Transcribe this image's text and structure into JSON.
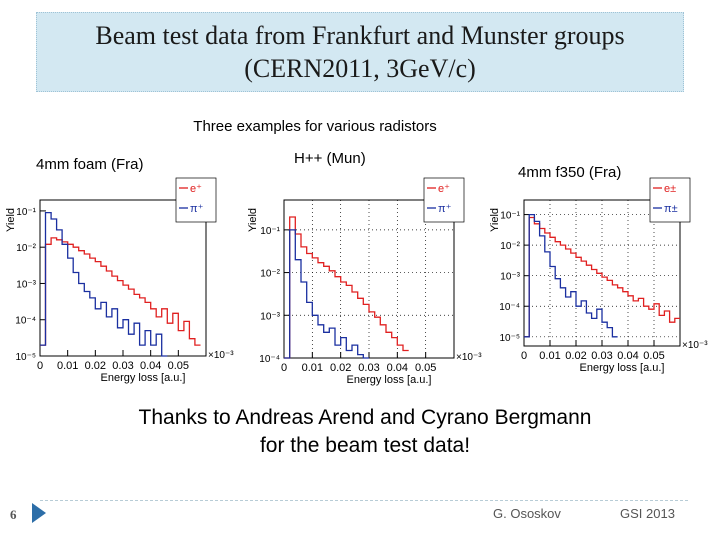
{
  "slide": {
    "title_line1": "Beam test data from Frankfurt and Munster groups",
    "title_line2": "(CERN2011, 3GeV/c)",
    "subtitle": "Three examples for various radistors",
    "thanks_line1": "Thanks to Andreas Arend and Cyrano Bergmann",
    "thanks_line2": "for the beam test data!",
    "slide_number": "6",
    "footer_author": "G. Ososkov",
    "footer_conference": "GSI 2013",
    "accent_color": "#d3e8f2"
  },
  "chart_data": [
    {
      "type": "line",
      "panel_label": "4mm  foam (Fra)",
      "xlabel": "Energy loss [a.u.]",
      "ylabel": "Yield",
      "x_scale_label": "×10⁻³",
      "xlim": [
        0,
        0.06
      ],
      "ylim": [
        1e-05,
        0.2
      ],
      "y_scale": "log",
      "x_ticks": [
        "0",
        "0.01",
        "0.02",
        "0.03",
        "0.04",
        "0.05"
      ],
      "y_ticks": [
        "10⁻¹",
        "10⁻²",
        "10⁻³",
        "10⁻⁴",
        "10⁻⁵"
      ],
      "legend_position": "top-right",
      "grid": false,
      "series": [
        {
          "name": "e⁺",
          "color": "#e02020",
          "x": [
            0,
            0.002,
            0.004,
            0.006,
            0.008,
            0.01,
            0.012,
            0.014,
            0.016,
            0.018,
            0.02,
            0.022,
            0.024,
            0.026,
            0.028,
            0.03,
            0.032,
            0.034,
            0.036,
            0.038,
            0.04,
            0.042,
            0.044,
            0.046,
            0.048,
            0.05,
            0.052,
            0.054,
            0.056
          ],
          "y": [
            2e-05,
            0.012,
            0.018,
            0.016,
            0.014,
            0.012,
            0.01,
            0.008,
            0.0065,
            0.005,
            0.004,
            0.003,
            0.0022,
            0.0016,
            0.0012,
            0.0009,
            0.0007,
            0.0005,
            0.0004,
            0.0003,
            0.0002,
            0.00012,
            0.0002,
            8e-05,
            0.00015,
            5e-05,
            9e-05,
            3e-05,
            2e-05
          ]
        },
        {
          "name": "π⁺",
          "color": "#1a2fa0",
          "x": [
            0,
            0.002,
            0.004,
            0.006,
            0.008,
            0.01,
            0.012,
            0.014,
            0.016,
            0.018,
            0.02,
            0.022,
            0.024,
            0.026,
            0.028,
            0.03,
            0.032,
            0.034,
            0.036,
            0.038,
            0.04,
            0.042,
            0.044
          ],
          "y": [
            2e-05,
            0.09,
            0.06,
            0.03,
            0.012,
            0.005,
            0.002,
            0.001,
            0.0006,
            0.0004,
            0.0002,
            0.0003,
            0.00012,
            0.0002,
            6e-05,
            0.0001,
            4e-05,
            8e-05,
            2e-05,
            5e-05,
            2e-05,
            4e-05,
            1e-05
          ]
        }
      ]
    },
    {
      "type": "line",
      "panel_label": "H++ (Mun)",
      "xlabel": "Energy loss [a.u.]",
      "ylabel": "Yield",
      "x_scale_label": "×10⁻³",
      "xlim": [
        0,
        0.06
      ],
      "ylim": [
        0.0001,
        0.5
      ],
      "y_scale": "log",
      "x_ticks": [
        "0",
        "0.01",
        "0.02",
        "0.03",
        "0.04",
        "0.05"
      ],
      "y_ticks": [
        "10⁻¹",
        "10⁻²",
        "10⁻³",
        "10⁻⁴"
      ],
      "legend_position": "top-right",
      "grid": true,
      "series": [
        {
          "name": "e⁺",
          "color": "#e02020",
          "x": [
            0,
            0.002,
            0.004,
            0.006,
            0.008,
            0.01,
            0.012,
            0.014,
            0.016,
            0.018,
            0.02,
            0.022,
            0.024,
            0.026,
            0.028,
            0.03,
            0.032,
            0.034,
            0.036,
            0.038,
            0.04,
            0.042
          ],
          "y": [
            0.0001,
            0.2,
            0.08,
            0.04,
            0.028,
            0.022,
            0.017,
            0.014,
            0.011,
            0.008,
            0.006,
            0.005,
            0.0035,
            0.0025,
            0.0018,
            0.0012,
            0.0009,
            0.0006,
            0.0004,
            0.0003,
            0.0002,
            0.00015
          ]
        },
        {
          "name": "π⁺",
          "color": "#1a2fa0",
          "x": [
            0,
            0.002,
            0.004,
            0.006,
            0.008,
            0.01,
            0.012,
            0.014,
            0.016,
            0.018,
            0.02,
            0.022,
            0.024,
            0.026,
            0.028
          ],
          "y": [
            0.0001,
            0.1,
            0.02,
            0.006,
            0.002,
            0.001,
            0.0006,
            0.0004,
            0.0005,
            0.0002,
            0.0003,
            0.00015,
            0.0002,
            0.00012,
            0.0001
          ]
        }
      ]
    },
    {
      "type": "line",
      "panel_label": "4mm  f350 (Fra)",
      "xlabel": "Energy loss [a.u.]",
      "ylabel": "Yield",
      "x_scale_label": "×10⁻³",
      "xlim": [
        0,
        0.06
      ],
      "ylim": [
        5e-06,
        0.3
      ],
      "y_scale": "log",
      "x_ticks": [
        "0",
        "0.01",
        "0.02",
        "0.03",
        "0.04",
        "0.05"
      ],
      "y_ticks": [
        "10⁻¹",
        "10⁻²",
        "10⁻³",
        "10⁻⁴",
        "10⁻⁵"
      ],
      "legend_position": "top-right",
      "grid": true,
      "series": [
        {
          "name": "e±",
          "color": "#e02020",
          "x": [
            0,
            0.002,
            0.004,
            0.006,
            0.008,
            0.01,
            0.012,
            0.014,
            0.016,
            0.018,
            0.02,
            0.022,
            0.024,
            0.026,
            0.028,
            0.03,
            0.032,
            0.034,
            0.036,
            0.038,
            0.04,
            0.042,
            0.044,
            0.046,
            0.048,
            0.05,
            0.052,
            0.054,
            0.056,
            0.058
          ],
          "y": [
            1e-05,
            0.08,
            0.05,
            0.035,
            0.025,
            0.018,
            0.013,
            0.01,
            0.0075,
            0.0055,
            0.004,
            0.003,
            0.0022,
            0.0016,
            0.0012,
            0.0009,
            0.0007,
            0.0005,
            0.0004,
            0.0003,
            0.00022,
            0.00015,
            0.00018,
            0.0001,
            8e-05,
            0.00012,
            5e-05,
            7e-05,
            3e-05,
            4e-05
          ]
        },
        {
          "name": "π±",
          "color": "#1a2fa0",
          "x": [
            0,
            0.002,
            0.004,
            0.006,
            0.008,
            0.01,
            0.012,
            0.014,
            0.016,
            0.018,
            0.02,
            0.022,
            0.024,
            0.026,
            0.028,
            0.03,
            0.032,
            0.034
          ],
          "y": [
            1e-05,
            0.1,
            0.06,
            0.02,
            0.006,
            0.002,
            0.0008,
            0.0004,
            0.0002,
            0.0003,
            0.0001,
            0.00015,
            6e-05,
            4e-05,
            8e-05,
            3e-05,
            2e-05,
            1e-05
          ]
        }
      ]
    }
  ]
}
